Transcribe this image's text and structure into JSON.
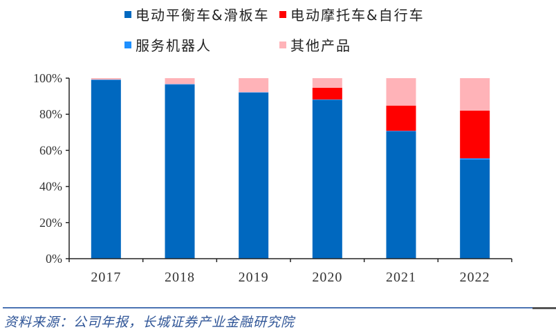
{
  "chart_data": {
    "type": "bar",
    "stacked": true,
    "title": "",
    "xlabel": "",
    "ylabel": "",
    "ylim": [
      0,
      100
    ],
    "yticks": [
      "0%",
      "20%",
      "40%",
      "60%",
      "80%",
      "100%"
    ],
    "categories": [
      "2017",
      "2018",
      "2019",
      "2020",
      "2021",
      "2022"
    ],
    "series": [
      {
        "name": "电动平衡车&滑板车",
        "color": "#0068bf",
        "values": [
          99.0,
          96.5,
          92.0,
          88.0,
          70.5,
          54.8
        ]
      },
      {
        "name": "服务机器人",
        "color": "#1e90ff",
        "values": [
          0.2,
          0.2,
          0.2,
          0.2,
          0.3,
          0.8
        ]
      },
      {
        "name": "电动摩托车&自行车",
        "color": "#ff0000",
        "values": [
          0.0,
          0.0,
          0.0,
          6.5,
          14.0,
          26.4
        ]
      },
      {
        "name": "其他产品",
        "color": "#ffb3b8",
        "values": [
          0.8,
          3.3,
          7.8,
          5.3,
          15.2,
          18.0
        ]
      }
    ],
    "legend_position": "top"
  },
  "legend": {
    "items": [
      {
        "label": "电动平衡车&滑板车",
        "color": "#0068bf"
      },
      {
        "label": "电动摩托车&自行车",
        "color": "#ff0000"
      },
      {
        "label": "服务机器人",
        "color": "#1e90ff"
      },
      {
        "label": "其他产品",
        "color": "#ffb3b8"
      }
    ]
  },
  "footer": {
    "source": "资料来源：公司年报，长城证券产业金融研究院"
  }
}
